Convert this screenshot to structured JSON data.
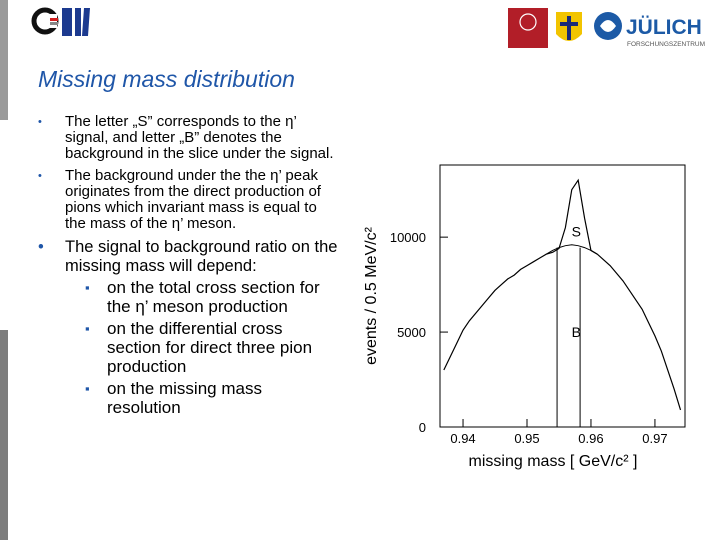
{
  "header": {
    "title": "Missing mass distribution",
    "logos": {
      "julich": "JÜLICH",
      "julich_sub": "FORSCHUNGSZENTRUM"
    }
  },
  "bullets": [
    "The letter „S” corresponds to the η’ signal, and letter „B” denotes the background in the slice under the signal.",
    "The background under the the η’ peak originates from the direct production of pions which invariant mass is equal to the mass of the η’ meson.",
    {
      "text": "The signal to background ratio on the missing mass will depend:",
      "subitems": [
        "on the total cross section for the η’ meson production",
        "on the differential cross section for direct three pion production",
        "on the missing mass resolution"
      ]
    }
  ],
  "chart_data": {
    "type": "line",
    "xlabel": "missing mass [ GeV/c² ]",
    "ylabel": "events / 0.5 MeV/c²",
    "x": [
      0.937,
      0.938,
      0.939,
      0.94,
      0.941,
      0.942,
      0.943,
      0.944,
      0.945,
      0.946,
      0.947,
      0.948,
      0.949,
      0.95,
      0.951,
      0.952,
      0.953,
      0.954,
      0.955,
      0.956,
      0.957,
      0.958,
      0.959,
      0.96,
      0.961,
      0.962,
      0.963,
      0.964,
      0.965,
      0.966,
      0.967,
      0.968,
      0.969,
      0.97,
      0.971,
      0.972,
      0.973,
      0.974
    ],
    "values": [
      3000,
      3700,
      4400,
      5100,
      5600,
      6000,
      6400,
      6800,
      7200,
      7500,
      7800,
      8000,
      8300,
      8500,
      8700,
      8900,
      9100,
      9200,
      9400,
      10500,
      12500,
      13000,
      11000,
      9300,
      9100,
      8800,
      8500,
      8100,
      7700,
      7200,
      6700,
      6200,
      5500,
      4800,
      4000,
      3000,
      2000,
      900
    ],
    "color": "#000000",
    "fit_x": [
      0.953,
      0.954,
      0.955,
      0.956,
      0.957,
      0.958,
      0.959,
      0.96,
      0.961
    ],
    "fit_values": [
      9100,
      9300,
      9450,
      9550,
      9600,
      9550,
      9450,
      9300,
      9100
    ],
    "signal_region": [
      0.9547,
      0.9583
    ],
    "annotations": [
      {
        "text": "S",
        "x": 0.9577,
        "y": 10300
      },
      {
        "text": "B",
        "x": 0.9577,
        "y": 5000
      }
    ],
    "xlim": [
      0.9364,
      0.9747
    ],
    "ylim": [
      0,
      13800
    ],
    "xticks": [
      0.94,
      0.95,
      0.96,
      0.97
    ],
    "yticks": [
      0,
      5000,
      10000
    ]
  }
}
